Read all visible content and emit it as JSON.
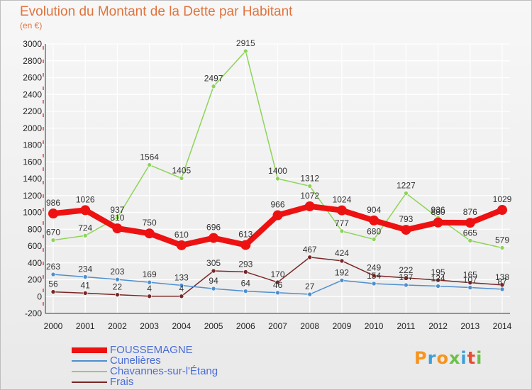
{
  "header": {
    "title": "Evolution du Montant de la Dette par Habitant",
    "subtitle": "(en €)"
  },
  "logo": {
    "text": "Proxiti",
    "colors": [
      "#f7941d",
      "#3aa0d8",
      "#f7941d",
      "#6cc04a",
      "#3aa0d8",
      "#e94e35",
      "#6cc04a"
    ]
  },
  "chart_data": {
    "type": "line",
    "title": "Evolution du Montant de la Dette par Habitant",
    "subtitle": "(en €)",
    "ylim": [
      -200,
      3000
    ],
    "yticks": [
      -200,
      0,
      200,
      400,
      600,
      800,
      1000,
      1200,
      1400,
      1600,
      1800,
      2000,
      2200,
      2400,
      2600,
      2800,
      3000
    ],
    "x": [
      "2000",
      "2001",
      "2002",
      "2003",
      "2004",
      "2005",
      "2006",
      "2007",
      "2008",
      "2009",
      "2010",
      "2011",
      "2012",
      "2013",
      "2014"
    ],
    "grid": true,
    "legend_position": "bottom-left",
    "series": [
      {
        "name": "FOUSSEMAGNE",
        "color": "#ee1111",
        "emphasis": true,
        "values": [
          986,
          1026,
          810,
          750,
          610,
          696,
          613,
          966,
          1072,
          1024,
          904,
          793,
          880,
          876,
          1029
        ],
        "labels": [
          "986",
          "1026",
          "810",
          "750",
          "610",
          "696",
          "613",
          "966",
          "1072",
          "1024",
          "904",
          "793",
          "880",
          "876",
          "1029"
        ]
      },
      {
        "name": "Cunelières",
        "color": "#4f8fcf",
        "values": [
          263,
          234,
          203,
          169,
          133,
          94,
          64,
          46,
          27,
          192,
          154,
          137,
          124,
          107,
          87
        ],
        "labels": [
          "263",
          "234",
          "203",
          "169",
          "133",
          "94",
          "64",
          "46",
          "27",
          "192",
          "154",
          "137",
          "124",
          "107",
          "87"
        ]
      },
      {
        "name": "Chavannes-sur-l'Étang",
        "color": "#8ed458",
        "values": [
          670,
          724,
          937,
          1564,
          1405,
          2497,
          2915,
          1400,
          1312,
          777,
          680,
          1227,
          936,
          665,
          579
        ],
        "labels": [
          "670",
          "724",
          "937",
          "1564",
          "1405",
          "2497",
          "2915",
          "1400",
          "1312",
          "777",
          "680",
          "1227",
          "936",
          "665",
          "579"
        ]
      },
      {
        "name": "Frais",
        "color": "#7a2626",
        "values": [
          56,
          41,
          22,
          4,
          4,
          305,
          293,
          170,
          467,
          424,
          249,
          222,
          195,
          165,
          138
        ],
        "labels": [
          "56",
          "41",
          "22",
          "4",
          "4",
          "305",
          "293",
          "170",
          "467",
          "424",
          "249",
          "222",
          "195",
          "165",
          "138"
        ]
      }
    ]
  }
}
